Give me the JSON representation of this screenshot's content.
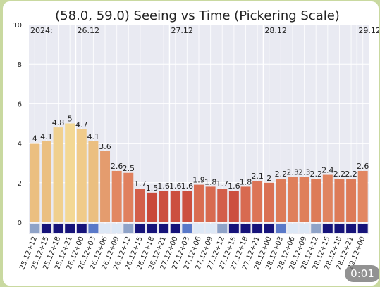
{
  "chart_data": {
    "type": "bar",
    "title": "(58.0, 59.0) Seeing vs Time (Pickering Scale)",
    "xlabel": "",
    "ylabel": "",
    "ylim": [
      0,
      10
    ],
    "y_ticks": [
      0,
      2,
      4,
      6,
      8,
      10
    ],
    "grid": true,
    "categories": [
      "25.12+12",
      "25.12+15",
      "25.12+18",
      "25.12+21",
      "26.12+00",
      "26.12+03",
      "26.12+06",
      "26.12+09",
      "26.12+12",
      "26.12+15",
      "26.12+18",
      "26.12+21",
      "27.12+00",
      "27.12+03",
      "27.12+06",
      "27.12+09",
      "27.12+12",
      "27.12+15",
      "27.12+18",
      "27.12+21",
      "28.12+00",
      "28.12+03",
      "28.12+06",
      "28.12+09",
      "28.12+12",
      "28.12+15",
      "28.12+18",
      "28.12+21",
      "29.12+00"
    ],
    "values": [
      4,
      4.1,
      4.8,
      5,
      4.7,
      4.1,
      3.6,
      2.6,
      2.5,
      1.7,
      1.5,
      1.6,
      1.6,
      1.6,
      1.9,
      1.8,
      1.7,
      1.6,
      1.8,
      2.1,
      2,
      2.2,
      2.3,
      2.3,
      2.2,
      2.4,
      2.2,
      2.2,
      2.6
    ],
    "value_labels": [
      "4",
      "4.1",
      "4.8",
      "5",
      "4.7",
      "4.1",
      "3.6",
      "2.6",
      "2.5",
      "1.7",
      "1.5",
      "1.6",
      "1.6",
      "1.6",
      "1.9",
      "1.8",
      "1.7",
      "1.6",
      "1.8",
      "2.1",
      "2",
      "2.2",
      "2.3",
      "2.3",
      "2.2",
      "2.4",
      "2.2",
      "2.2",
      "2.6"
    ],
    "bar_colors": [
      "#ebbf80",
      "#ebbf80",
      "#f0d08e",
      "#f3d894",
      "#f0cb8a",
      "#ebbf80",
      "#e49c6e",
      "#e28762",
      "#e0805e",
      "#d35e4a",
      "#c9493b",
      "#cc4f3f",
      "#cc4f3f",
      "#cc4f3f",
      "#d96d52",
      "#d86a50",
      "#d35e4a",
      "#cc4f3f",
      "#d86a50",
      "#dc7456",
      "#da7154",
      "#dd7b58",
      "#df7f5b",
      "#df7f5b",
      "#dd7b58",
      "#e08460",
      "#dd7b58",
      "#dd7b58",
      "#e28762"
    ],
    "strip_colors": [
      "#8fa3c8",
      "#16137a",
      "#16137a",
      "#16137a",
      "#16137a",
      "#5a79c9",
      "#dde8f6",
      "#dde8f6",
      "#8fa3c8",
      "#16137a",
      "#16137a",
      "#16137a",
      "#16137a",
      "#5a79c9",
      "#dde8f6",
      "#dde8f6",
      "#8fa3c8",
      "#16137a",
      "#16137a",
      "#16137a",
      "#16137a",
      "#5a79c9",
      "#dde8f6",
      "#dde8f6",
      "#8fa3c8",
      "#16137a",
      "#16137a",
      "#16137a",
      "#16137a"
    ],
    "top_labels": [
      {
        "text": "2024:",
        "index": 0
      },
      {
        "text": "26.12",
        "index": 4
      },
      {
        "text": "27.12",
        "index": 12
      },
      {
        "text": "28.12",
        "index": 20
      },
      {
        "text": "29.12",
        "index": 28
      }
    ],
    "day_line_indices": [
      4,
      12,
      20,
      28
    ]
  },
  "player": {
    "timestamp": "0:01"
  },
  "colors": {
    "plot_background": "#e9eaf2",
    "grid": "#ffffff",
    "page_background": "#c9d9a0"
  }
}
